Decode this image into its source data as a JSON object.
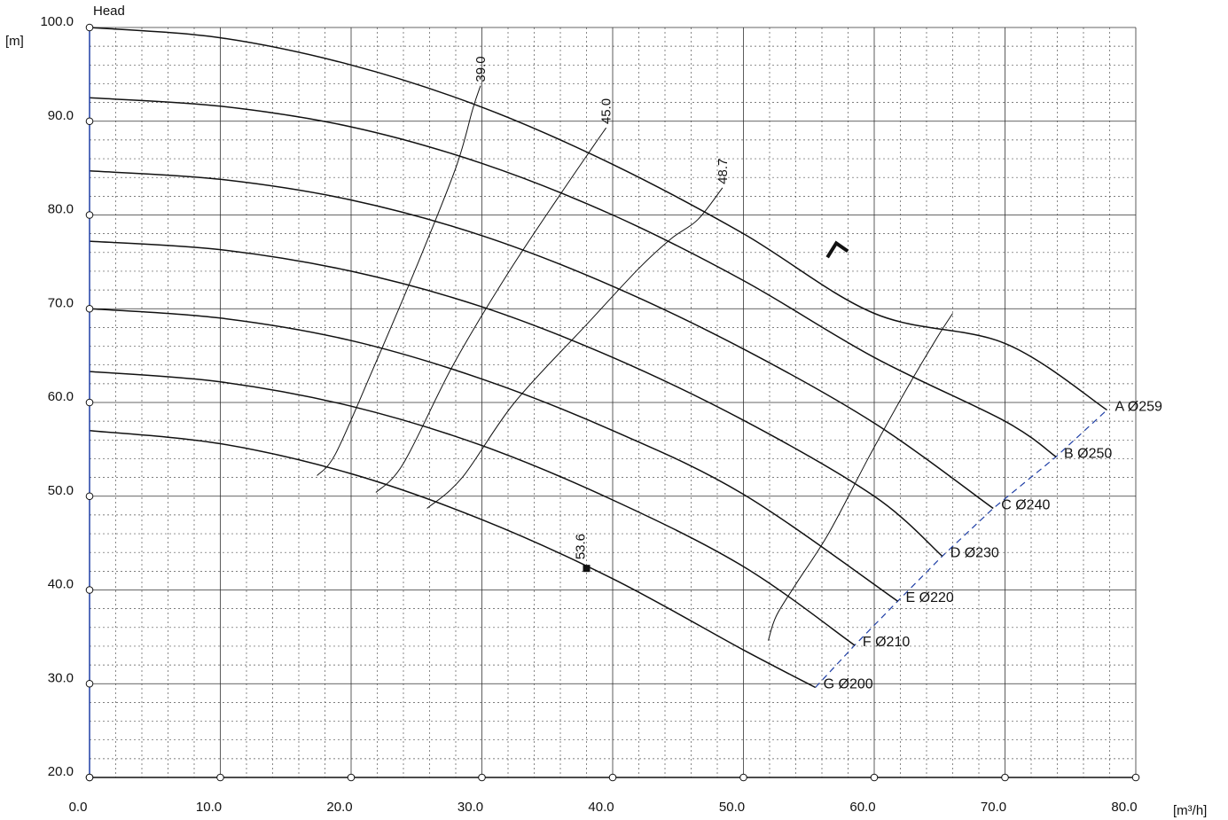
{
  "chart_data": {
    "type": "line",
    "title": "",
    "ylabel": "Head",
    "yunit": "[m]",
    "xunit": "[m³/h]",
    "xlim": [
      0,
      80
    ],
    "ylim": [
      20,
      100
    ],
    "x_ticks": [
      "0.0",
      "10.0",
      "20.0",
      "30.0",
      "40.0",
      "50.0",
      "60.0",
      "70.0",
      "80.0"
    ],
    "y_ticks": [
      "20.0",
      "30.0",
      "40.0",
      "50.0",
      "60.0",
      "70.0",
      "80.0",
      "90.0",
      "100.0"
    ],
    "x_tick_values": [
      0,
      10,
      20,
      30,
      40,
      50,
      60,
      70,
      80
    ],
    "y_tick_values": [
      20,
      30,
      40,
      50,
      60,
      70,
      80,
      90,
      100
    ],
    "grid": true,
    "series": [
      {
        "name": "A  Ø259",
        "points": [
          [
            0,
            100
          ],
          [
            10,
            98.9
          ],
          [
            20,
            96
          ],
          [
            30,
            91.5
          ],
          [
            40,
            85.4
          ],
          [
            50,
            78
          ],
          [
            60,
            69.5
          ],
          [
            70,
            66.3
          ],
          [
            77.8,
            59.2
          ]
        ]
      },
      {
        "name": "B  Ø250",
        "points": [
          [
            0,
            92.5
          ],
          [
            10,
            91.6
          ],
          [
            20,
            89.4
          ],
          [
            30,
            85.5
          ],
          [
            40,
            80
          ],
          [
            50,
            73
          ],
          [
            60,
            64.8
          ],
          [
            70,
            58
          ],
          [
            73.9,
            54.2
          ]
        ]
      },
      {
        "name": "C  Ø240",
        "points": [
          [
            0,
            84.7
          ],
          [
            10,
            83.8
          ],
          [
            20,
            81.6
          ],
          [
            30,
            77.8
          ],
          [
            40,
            72.4
          ],
          [
            50,
            65.7
          ],
          [
            60,
            57.8
          ],
          [
            69.1,
            48.7
          ]
        ]
      },
      {
        "name": "D  Ø230",
        "points": [
          [
            0,
            77.2
          ],
          [
            10,
            76.3
          ],
          [
            20,
            74
          ],
          [
            30,
            70.2
          ],
          [
            40,
            64.8
          ],
          [
            50,
            58.1
          ],
          [
            60,
            50
          ],
          [
            65.2,
            43.6
          ]
        ]
      },
      {
        "name": "E  Ø220",
        "points": [
          [
            0,
            70
          ],
          [
            10,
            69
          ],
          [
            20,
            66.6
          ],
          [
            30,
            62.5
          ],
          [
            40,
            57
          ],
          [
            50,
            50.2
          ],
          [
            61.8,
            38.8
          ]
        ]
      },
      {
        "name": "F  Ø210",
        "points": [
          [
            0,
            63.3
          ],
          [
            10,
            62.2
          ],
          [
            20,
            59.6
          ],
          [
            30,
            55.4
          ],
          [
            40,
            49.6
          ],
          [
            50,
            42.5
          ],
          [
            58.5,
            34.1
          ]
        ]
      },
      {
        "name": "G  Ø200",
        "points": [
          [
            0,
            57
          ],
          [
            10,
            55.6
          ],
          [
            20,
            52.4
          ],
          [
            30,
            47.5
          ],
          [
            40,
            41.2
          ],
          [
            50,
            33.6
          ],
          [
            55.5,
            29.6
          ]
        ]
      }
    ],
    "efficiency_contours": [
      {
        "label": "39.0",
        "points": [
          [
            17.4,
            52.2
          ],
          [
            18.8,
            54.5
          ],
          [
            21.5,
            63
          ],
          [
            25,
            74.5
          ],
          [
            28,
            85
          ],
          [
            29.3,
            91.3
          ],
          [
            29.9,
            93.8
          ]
        ]
      },
      {
        "label": "45.0",
        "points": [
          [
            21.9,
            50.4
          ],
          [
            24,
            53.5
          ],
          [
            27.8,
            64
          ],
          [
            32,
            73.8
          ],
          [
            36,
            82.2
          ],
          [
            38.5,
            87.3
          ],
          [
            39.5,
            89.3
          ]
        ]
      },
      {
        "label": "48.7",
        "points": [
          [
            25.8,
            48.7
          ],
          [
            28.5,
            52
          ],
          [
            32.5,
            60
          ],
          [
            38,
            68.3
          ],
          [
            42,
            74.3
          ],
          [
            44.5,
            77.5
          ],
          [
            46.5,
            79.5
          ],
          [
            48.4,
            82.9
          ]
        ]
      },
      {
        "label": "",
        "points": [
          [
            51.9,
            34.6
          ],
          [
            52.5,
            37.2
          ],
          [
            54,
            40.6
          ],
          [
            56.5,
            46
          ],
          [
            59.6,
            54.2
          ],
          [
            62.5,
            61.5
          ],
          [
            64.8,
            66.9
          ],
          [
            66,
            69.5
          ]
        ]
      }
    ],
    "limit_line": {
      "points": [
        [
          55.5,
          29.6
        ],
        [
          58.5,
          34.1
        ],
        [
          61.8,
          38.8
        ],
        [
          65.2,
          43.6
        ],
        [
          69.1,
          48.7
        ],
        [
          73.9,
          54.2
        ],
        [
          77.8,
          59.2
        ]
      ]
    },
    "marker": {
      "label": "53.6",
      "x": 38,
      "y": 42.3
    },
    "arrow": {
      "x": 57.3,
      "y": 76.8
    }
  }
}
